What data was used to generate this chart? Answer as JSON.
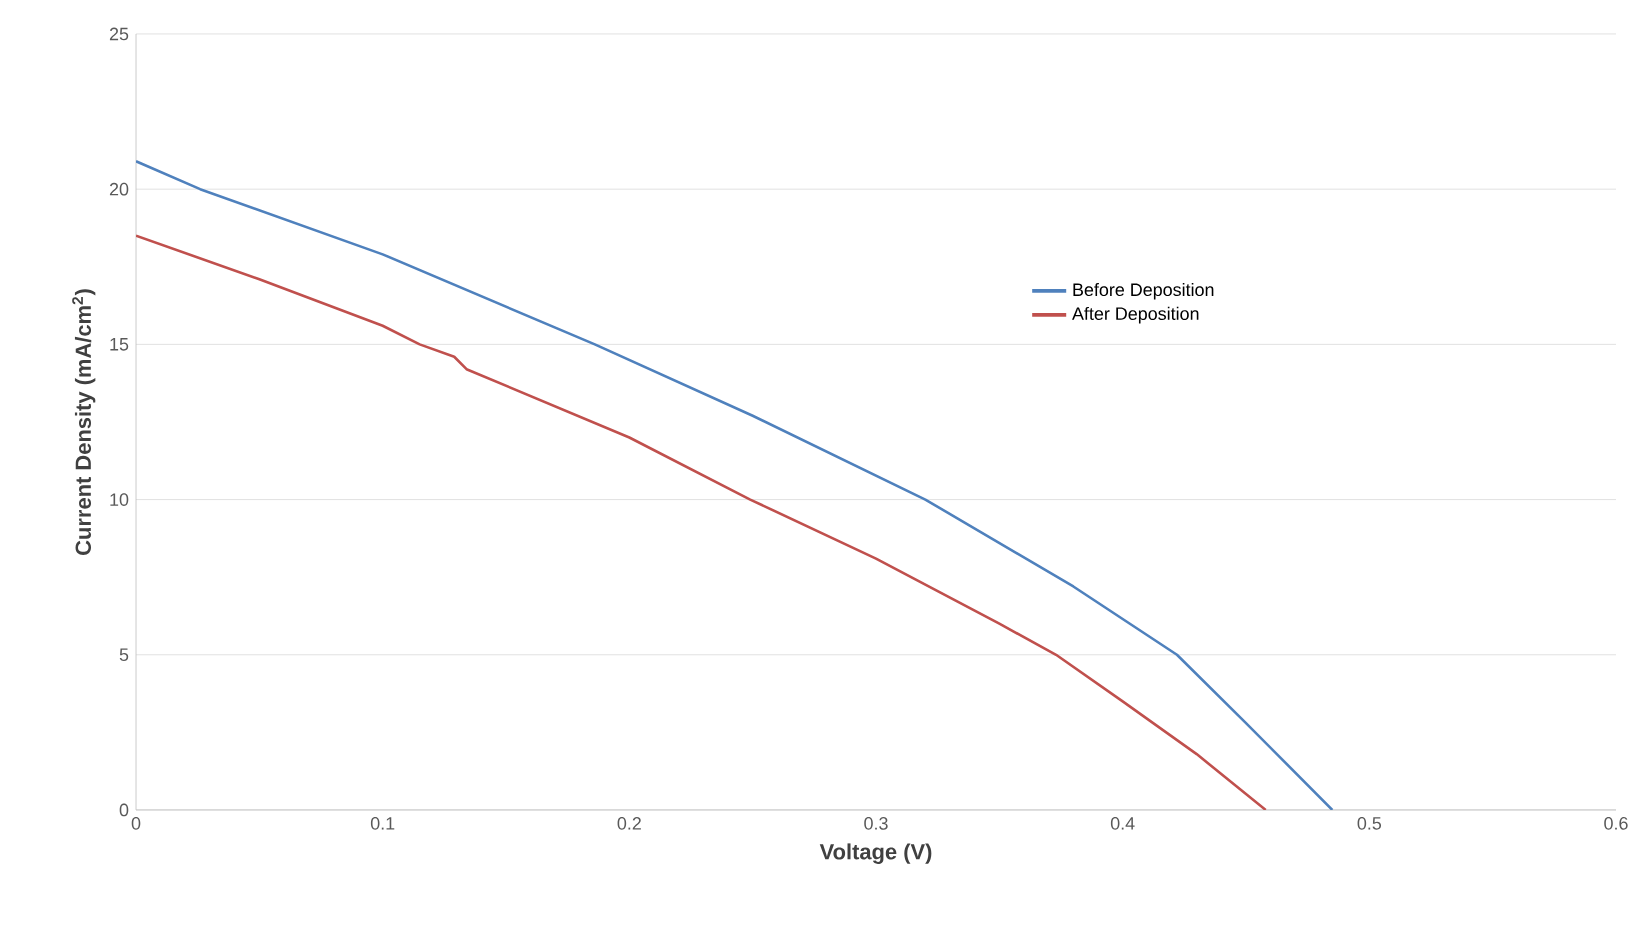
{
  "chart_data": {
    "type": "line",
    "xlabel": "Voltage (V)",
    "ylabel": "Current Density (mA/cm$^{2}$)",
    "xlim": [
      0,
      0.6
    ],
    "ylim": [
      0,
      25
    ],
    "xticks": [
      0,
      0.1,
      0.2,
      0.3,
      0.4,
      0.5,
      0.6
    ],
    "yticks": [
      0,
      5,
      10,
      15,
      20,
      25
    ],
    "grid": "y",
    "legend": "right",
    "marker": "none",
    "series": [
      {
        "name": "Before Deposition",
        "color": "#4f81bd",
        "x": [
          0,
          0.026,
          0.1,
          0.186,
          0.25,
          0.32,
          0.38,
          0.422,
          0.45,
          0.485
        ],
        "values": [
          20.9,
          20,
          17.9,
          15,
          12.7,
          10,
          7.2,
          5,
          2.8,
          0
        ]
      },
      {
        "name": "After Deposition",
        "color": "#c0504d",
        "x": [
          0,
          0.05,
          0.1,
          0.115,
          0.129,
          0.134,
          0.2,
          0.249,
          0.3,
          0.35,
          0.373,
          0.4,
          0.43,
          0.458
        ],
        "values": [
          18.5,
          17.1,
          15.6,
          15.0,
          14.6,
          14.2,
          12.0,
          10,
          8.1,
          6.0,
          5,
          3.5,
          1.8,
          0
        ]
      }
    ]
  }
}
